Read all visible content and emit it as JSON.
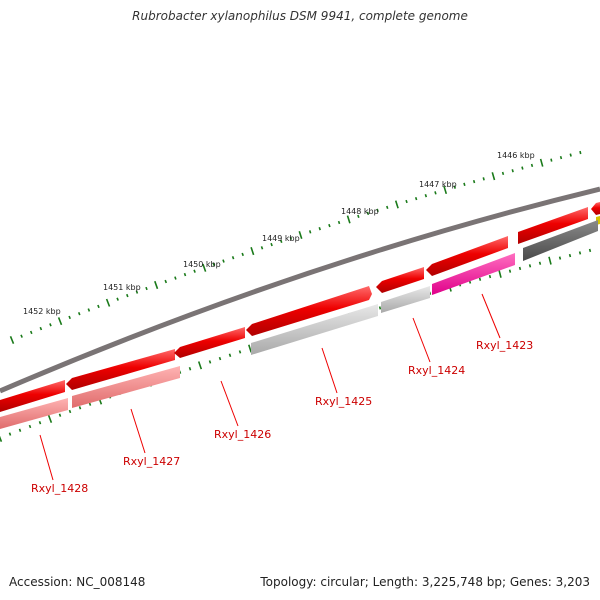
{
  "title": "Rubrobacter xylanophilus DSM 9941, complete genome",
  "footer": {
    "accession": "Accession: NC_008148",
    "summary": "Topology: circular; Length: 3,225,748 bp; Genes: 3,203"
  },
  "scale_labels": [
    "1446 kbp",
    "1447 kbp",
    "1448 kbp",
    "1449 kbp",
    "1450 kbp",
    "1451 kbp",
    "1452 kbp"
  ],
  "gene_labels": [
    "Rxyl_1423",
    "Rxyl_1424",
    "Rxyl_1425",
    "Rxyl_1426",
    "Rxyl_1427",
    "Rxyl_1428"
  ],
  "colors": {
    "backbone": "#7a7475",
    "forward_gene": "#e00000",
    "label_red": "#cc0000",
    "tick_green": "#1a7a1a",
    "pink": "#ff1493",
    "grey": "#bdbdbd",
    "dark_grey": "#5a5a5a",
    "salmon": "#f08080"
  }
}
